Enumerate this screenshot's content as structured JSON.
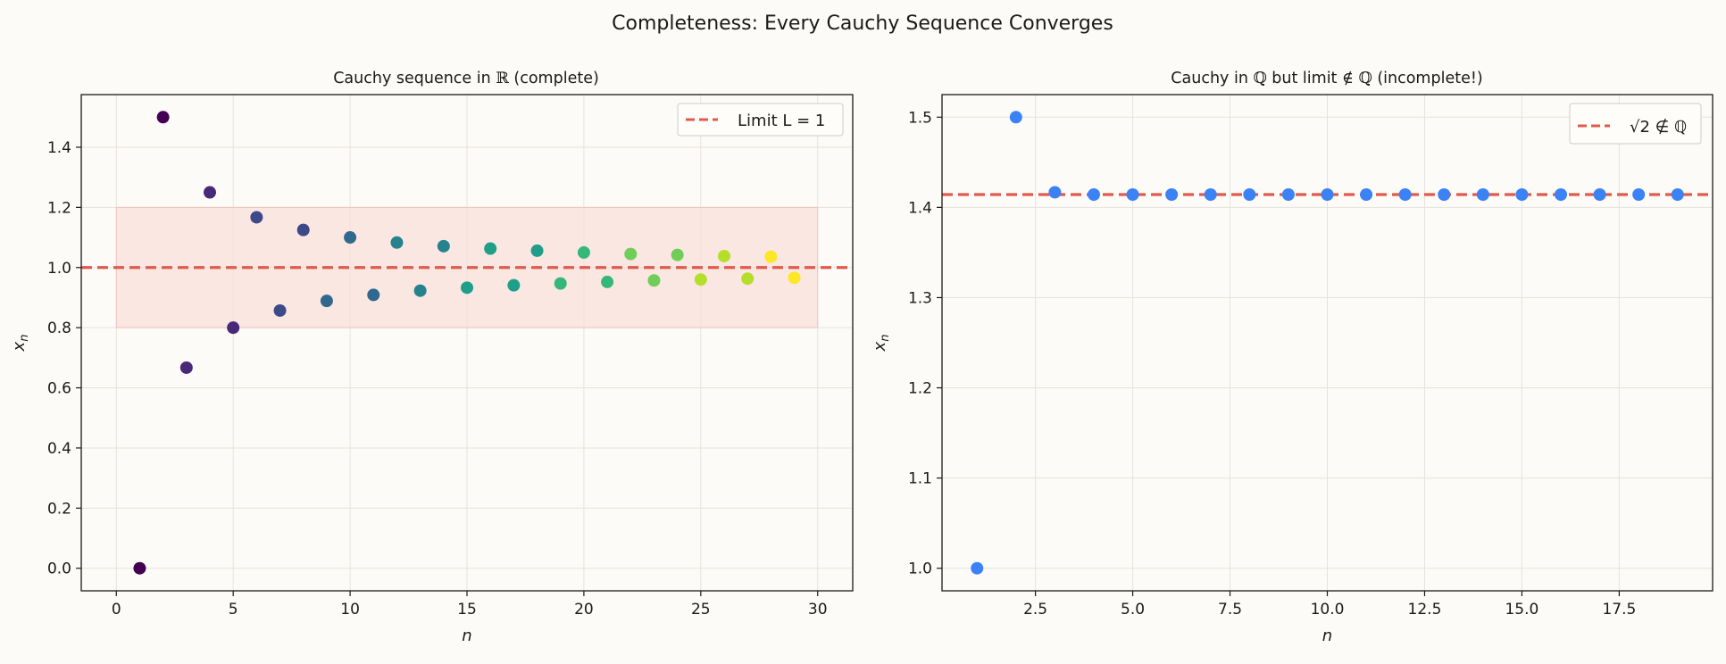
{
  "figure_title": "Completeness: Every Cauchy Sequence Converges",
  "colors": {
    "background": "#fdfbf7",
    "limit_line": "#e05a4c",
    "band_fill": "#f9dcd7",
    "point_blue": "#3b82f6",
    "viridis": [
      "#440154",
      "#482878",
      "#3e4989",
      "#31688e",
      "#26828e",
      "#1f9e89",
      "#35b779",
      "#6ece58",
      "#b5de2b",
      "#fde725"
    ]
  },
  "chart_data": [
    {
      "type": "scatter",
      "title_prefix": "Cauchy sequence in ",
      "title_symbol": "ℝ",
      "title_suffix": " (complete)",
      "xlabel": "n",
      "ylabel": "x",
      "ylabel_sub": "n",
      "xlim": [
        -1.5,
        31.5
      ],
      "ylim": [
        -0.075,
        1.575
      ],
      "xticks": [
        0,
        5,
        10,
        15,
        20,
        25,
        30
      ],
      "xtick_labels": [
        "0",
        "5",
        "10",
        "15",
        "20",
        "25",
        "30"
      ],
      "yticks": [
        0.0,
        0.2,
        0.4,
        0.6,
        0.8,
        1.0,
        1.2,
        1.4
      ],
      "ytick_labels": [
        "0.0",
        "0.2",
        "0.4",
        "0.6",
        "0.8",
        "1.0",
        "1.2",
        "1.4"
      ],
      "grid": true,
      "legend_position": "top-right",
      "legend_label": "Limit L = 1",
      "limit": 1.0,
      "band": {
        "x": [
          0,
          30
        ],
        "y": [
          0.8,
          1.2
        ]
      },
      "colormap": "viridis",
      "x": [
        1,
        2,
        3,
        4,
        5,
        6,
        7,
        8,
        9,
        10,
        11,
        12,
        13,
        14,
        15,
        16,
        17,
        18,
        19,
        20,
        21,
        22,
        23,
        24,
        25,
        26,
        27,
        28,
        29
      ],
      "y": [
        0.0,
        1.5,
        0.667,
        1.25,
        0.8,
        1.167,
        0.857,
        1.125,
        0.889,
        1.1,
        0.909,
        1.083,
        0.923,
        1.071,
        0.933,
        1.063,
        0.941,
        1.056,
        0.947,
        1.05,
        0.952,
        1.045,
        0.957,
        1.042,
        0.96,
        1.038,
        0.963,
        1.036,
        0.966
      ]
    },
    {
      "type": "scatter",
      "title_prefix": "Cauchy in ",
      "title_symbol": "ℚ",
      "title_middle": " but limit ",
      "title_symbol2": "∉ ℚ",
      "title_suffix": " (incomplete!)",
      "xlabel": "n",
      "ylabel": "x",
      "ylabel_sub": "n",
      "xlim": [
        0.1,
        19.9
      ],
      "ylim": [
        0.975,
        1.525
      ],
      "xticks": [
        2.5,
        5.0,
        7.5,
        10.0,
        12.5,
        15.0,
        17.5
      ],
      "xtick_labels": [
        "2.5",
        "5.0",
        "7.5",
        "10.0",
        "12.5",
        "15.0",
        "17.5"
      ],
      "yticks": [
        1.0,
        1.1,
        1.2,
        1.3,
        1.4,
        1.5
      ],
      "ytick_labels": [
        "1.0",
        "1.1",
        "1.2",
        "1.3",
        "1.4",
        "1.5"
      ],
      "grid": true,
      "legend_position": "top-right",
      "legend_label": "√2 ∉ ℚ",
      "limit": 1.4142,
      "x": [
        1,
        2,
        3,
        4,
        5,
        6,
        7,
        8,
        9,
        10,
        11,
        12,
        13,
        14,
        15,
        16,
        17,
        18,
        19
      ],
      "y": [
        1.0,
        1.5,
        1.4167,
        1.4142,
        1.4142,
        1.4142,
        1.4142,
        1.4142,
        1.4142,
        1.4142,
        1.4142,
        1.4142,
        1.4142,
        1.4142,
        1.4142,
        1.4142,
        1.4142,
        1.4142,
        1.4142
      ]
    }
  ]
}
